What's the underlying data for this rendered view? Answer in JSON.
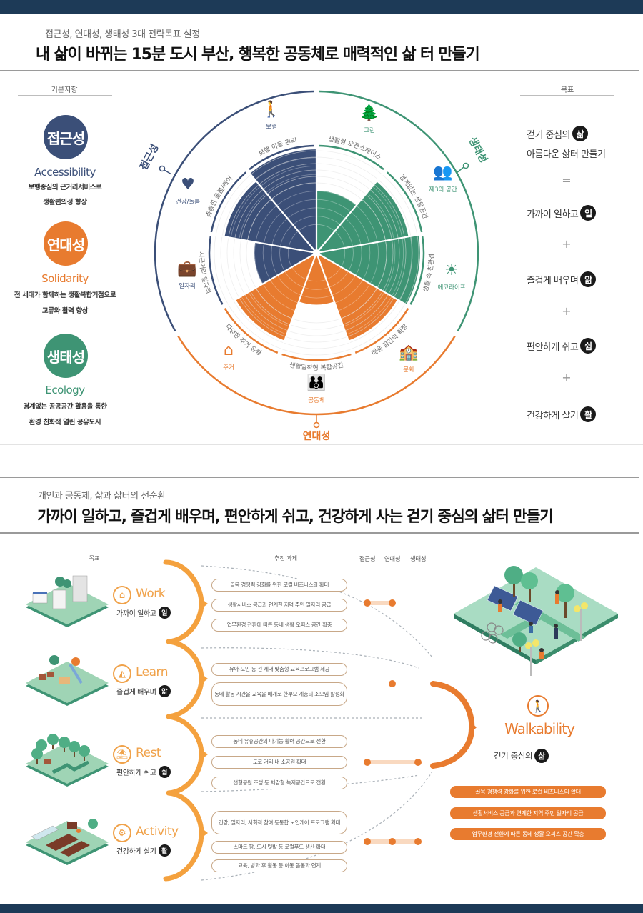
{
  "colors": {
    "navy": "#1d3a57",
    "accessibility_blue": "#3b4f78",
    "solidarity_orange": "#e87b2f",
    "ecology_green": "#3e9474",
    "light_orange": "#f0a24a"
  },
  "section1": {
    "subtitle": "접근성, 연대성, 생태성 3대 전략목표 설정",
    "title": "내 삶이 바뀌는 15분 도시 부산, 행복한 공동체로 매력적인 삶 터 만들기",
    "left_column": {
      "header": "기본지향",
      "items": [
        {
          "circle": "접근성",
          "english": "Accessibility",
          "desc_line1": "보행중심의 근거리서비스로",
          "desc_line2": "생활편의성 향상",
          "color": "#3b4f78"
        },
        {
          "circle": "연대성",
          "english": "Solidarity",
          "desc_line1": "전 세대가 함께하는 생활복합거점으로",
          "desc_line2": "교류와 활력 향상",
          "color": "#e87b2f"
        },
        {
          "circle": "생태성",
          "english": "Ecology",
          "desc_line1": "경계없는 공공공간 활용을 통한",
          "desc_line2": "환경 친화적 열린 공유도시",
          "color": "#3e9474"
        }
      ]
    },
    "right_column": {
      "header": "목표",
      "goal_main_line1": "걷기 중심의",
      "goal_main_badge": "삶",
      "goal_main_line2": "아름다운 삶터 만들기",
      "equals": "=",
      "plus": "+",
      "goals": [
        {
          "text": "가까이 일하고",
          "badge": "일"
        },
        {
          "text": "즐겁게 배우며",
          "badge": "앎"
        },
        {
          "text": "편안하게 쉬고",
          "badge": "쉼"
        },
        {
          "text": "건강하게 살기",
          "badge": "활"
        }
      ]
    },
    "radial": {
      "groups": [
        {
          "name": "접근성",
          "color": "#3b4f78"
        },
        {
          "name": "생태성",
          "color": "#3e9474"
        },
        {
          "name": "연대성",
          "color": "#e87b2f"
        }
      ],
      "icons": [
        {
          "label": "보행",
          "icon": "walking-person"
        },
        {
          "label": "그린",
          "icon": "trees"
        },
        {
          "label": "제3의 공간",
          "icon": "people-circle"
        },
        {
          "label": "에코라이프",
          "icon": "sun"
        },
        {
          "label": "문화",
          "icon": "school-building"
        },
        {
          "label": "공동체",
          "icon": "community-people"
        },
        {
          "label": "주거",
          "icon": "house"
        },
        {
          "label": "일자리",
          "icon": "briefcase"
        },
        {
          "label": "건강/돌봄",
          "icon": "heart-pulse"
        }
      ],
      "sector_labels": [
        "생활형 오픈스페이스",
        "경계없는 생활공간",
        "생활 속 친환경",
        "배움 공간의 확장",
        "생활밀착형 복합공간",
        "다양한 주거 유형",
        "지근거리 일자리",
        "촘촘한 돌봄/케어",
        "보행 이동 편리"
      ]
    }
  },
  "chart_data": {
    "type": "polar-bar",
    "title": "15분 도시 부산 전략 다이어그램",
    "categories": [
      "생활형 오픈스페이스",
      "경계없는 생활공간",
      "생활 속 친환경",
      "배움 공간의 확장",
      "생활밀착형 복합공간",
      "다양한 주거 유형",
      "지근거리 일자리",
      "촘촘한 돌봄/케어",
      "보행 이동 편리"
    ],
    "groups": [
      "생태성",
      "생태성",
      "생태성",
      "연대성",
      "연대성",
      "연대성",
      "접근성",
      "접근성",
      "접근성"
    ],
    "values": [
      6,
      9,
      10,
      9,
      5,
      9,
      6,
      9,
      10
    ],
    "rmax": 10,
    "grid": true
  },
  "section2": {
    "subtitle": "개인과 공동체, 삶과 삶터의 선순환",
    "title": "가까이 일하고, 즐겁게 배우며, 편안하게 쉬고, 건강하게 사는 걷기 중심의 삶터 만들기",
    "col_goal": "목표",
    "col_tasks": "추진 과제",
    "rating_heads": [
      "접근성",
      "연대성",
      "생태성"
    ],
    "categories": [
      {
        "title": "Work",
        "goal": "가까이 일하고",
        "badge": "일",
        "icon": "shop",
        "tasks": [
          "골목 경쟁력 강화를 위한 로컬 비즈니스의 확대",
          "생활서비스 공급과 연계한 지역 주민 일자리 공급",
          "업무환경 전환에 따른 동네 생활 오피스 공간 확충"
        ],
        "ratings": [
          true,
          true,
          false
        ]
      },
      {
        "title": "Learn",
        "goal": "즐겁게 배우며",
        "badge": "앎",
        "icon": "slide",
        "tasks": [
          "유아-노인 등 전 세대 맞춤형 교육프로그램 제공",
          "동네 활동 시간을 교육을 매개로 한|부모 계층의 소모임 활성화"
        ],
        "ratings": [
          false,
          true,
          false
        ]
      },
      {
        "title": "Rest",
        "goal": "편안하게 쉬고",
        "badge": "쉼",
        "icon": "bench",
        "tasks": [
          "동네 유휴공간의 다기능 활력 공간으로 전환",
          "도로 거리 내 소공원 확대",
          "선형공원 조성 등 체감형 녹지공간으로 전환"
        ],
        "ratings": [
          true,
          false,
          true
        ]
      },
      {
        "title": "Activity",
        "goal": "건강하게 살기",
        "badge": "활",
        "icon": "gear",
        "tasks": [
          "건강, 일자리, 사회적 참여 등|통합 노인케어 프로그램 확대",
          "스마트 팜, 도시 텃밭 등 로컬푸드 생산 확대",
          "교육, 방과 후 활동 등 아동 돌봄과 연계"
        ],
        "ratings": [
          true,
          true,
          true
        ]
      }
    ],
    "walkability": {
      "title": "Walkability",
      "goal": "걷기 중심의",
      "badge": "삶",
      "pills": [
        "골목 경쟁력 강화를 위한 로컬 비즈니스의 확대",
        "생활서비스 공급과 연계한 지역 주민 일자리 공급",
        "업무환경 전환에 따른 동네 생활 오피스 공간 확충"
      ]
    }
  }
}
